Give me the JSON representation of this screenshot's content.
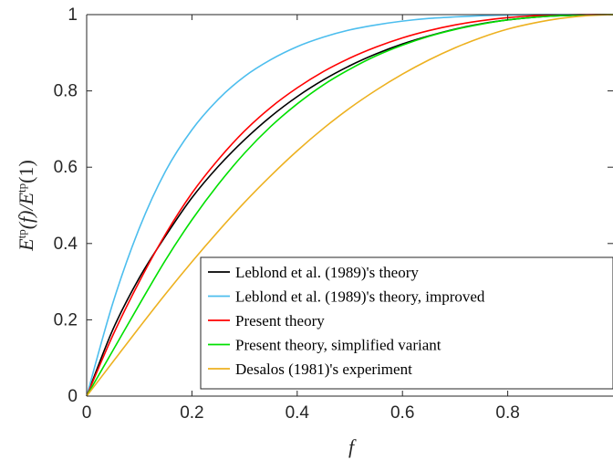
{
  "chart_data": {
    "type": "line",
    "title": "",
    "xlabel": "f",
    "ylabel": "E^tp(f)/E^tp(1)",
    "ylabel_parts": {
      "sym1": "E",
      "sup1": "tp",
      "mid": "(f)/",
      "sym2": "E",
      "sup2": "tp",
      "end": "(1)"
    },
    "xlim": [
      0,
      1
    ],
    "ylim": [
      0,
      1
    ],
    "xticks": [
      0,
      0.2,
      0.4,
      0.6,
      0.8
    ],
    "xtick_labels": [
      "0",
      "0.2",
      "0.4",
      "0.6",
      "0.8"
    ],
    "yticks": [
      0,
      0.2,
      0.4,
      0.6,
      0.8,
      1
    ],
    "ytick_labels": [
      "0",
      "0.2",
      "0.4",
      "0.6",
      "0.8",
      "1"
    ],
    "grid": false,
    "legend_position": "bottom-right",
    "x": [
      0,
      0.05,
      0.1,
      0.15,
      0.2,
      0.25,
      0.3,
      0.35,
      0.4,
      0.45,
      0.5,
      0.55,
      0.6,
      0.65,
      0.7,
      0.75,
      0.8,
      0.85,
      0.9,
      0.95,
      1.0
    ],
    "series": [
      {
        "name": "Leblond et al. (1989)'s theory",
        "color": "#000000",
        "values": [
          0,
          0.175,
          0.31,
          0.42,
          0.52,
          0.602,
          0.672,
          0.733,
          0.785,
          0.829,
          0.866,
          0.897,
          0.923,
          0.944,
          0.962,
          0.976,
          0.986,
          0.993,
          0.997,
          0.999,
          1.0
        ]
      },
      {
        "name": "Leblond et al. (1989)'s theory, improved",
        "color": "#4DBEEE",
        "values": [
          0,
          0.245,
          0.44,
          0.59,
          0.698,
          0.778,
          0.838,
          0.882,
          0.916,
          0.941,
          0.96,
          0.973,
          0.983,
          0.99,
          0.994,
          0.997,
          0.999,
          1.0,
          1.0,
          1.0,
          1.0
        ]
      },
      {
        "name": "Present theory",
        "color": "#FF0000",
        "values": [
          0,
          0.16,
          0.3,
          0.425,
          0.532,
          0.62,
          0.695,
          0.757,
          0.808,
          0.851,
          0.886,
          0.915,
          0.939,
          0.958,
          0.973,
          0.984,
          0.992,
          0.997,
          0.999,
          1.0,
          1.0
        ]
      },
      {
        "name": "Present theory, simplified variant",
        "color": "#00E000",
        "values": [
          0,
          0.12,
          0.24,
          0.357,
          0.462,
          0.555,
          0.637,
          0.707,
          0.766,
          0.816,
          0.857,
          0.892,
          0.92,
          0.943,
          0.961,
          0.975,
          0.986,
          0.993,
          0.997,
          0.999,
          1.0
        ]
      },
      {
        "name": "Desalos (1981)'s experiment",
        "color": "#EDB120",
        "values": [
          0,
          0.09,
          0.18,
          0.268,
          0.352,
          0.432,
          0.508,
          0.578,
          0.643,
          0.702,
          0.755,
          0.802,
          0.844,
          0.881,
          0.913,
          0.94,
          0.962,
          0.978,
          0.99,
          0.997,
          1.0
        ]
      }
    ]
  }
}
